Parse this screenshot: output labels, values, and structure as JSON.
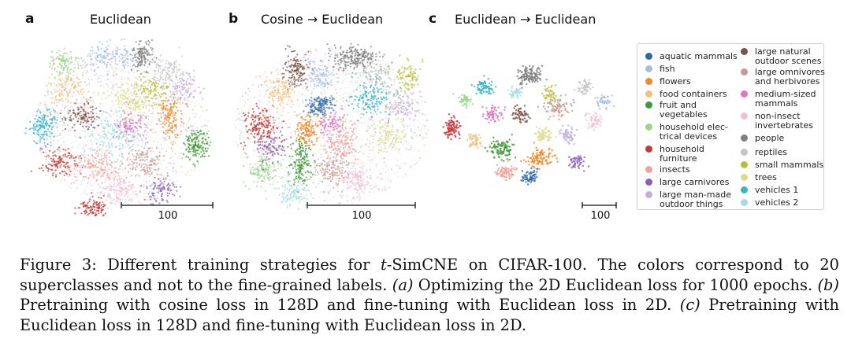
{
  "panels": [
    {
      "letter": "a",
      "title": "Euclidean",
      "scale_label": "100"
    },
    {
      "letter": "b",
      "title": "Cosine → Euclidean",
      "scale_label": "100"
    },
    {
      "letter": "c",
      "title": "Euclidean → Euclidean",
      "scale_label": "100"
    }
  ],
  "legend": [
    {
      "label": "aquatic mammals",
      "color": "#2e6aa8"
    },
    {
      "label": "fish",
      "color": "#a7bde0"
    },
    {
      "label": "flowers",
      "color": "#f08a2a"
    },
    {
      "label": "food containers",
      "color": "#f4bf7a"
    },
    {
      "label": "fruit and\nvegetables",
      "color": "#3e9a3a"
    },
    {
      "label": "household elec-\ntrical devices",
      "color": "#98d68a"
    },
    {
      "label": "household\nfurniture",
      "color": "#c63a36"
    },
    {
      "label": "insects",
      "color": "#f0a39e"
    },
    {
      "label": "large carnivores",
      "color": "#8a62b4"
    },
    {
      "label": "large man-made\noutdoor things",
      "color": "#c0b0d6"
    },
    {
      "label": "large natural\noutdoor scenes",
      "color": "#7d5349"
    },
    {
      "label": "large omnivores\nand herbivores",
      "color": "#c79b93"
    },
    {
      "label": "medium-sized\nmammals",
      "color": "#dc78c0"
    },
    {
      "label": "non-insect\ninvertebrates",
      "color": "#f2bfd6"
    },
    {
      "label": "people",
      "color": "#7f7f7f"
    },
    {
      "label": "reptiles",
      "color": "#c5c5c5"
    },
    {
      "label": "small mammals",
      "color": "#bdbd3a"
    },
    {
      "label": "trees",
      "color": "#dcdc8c"
    },
    {
      "label": "vehicles 1",
      "color": "#37b4c8"
    },
    {
      "label": "vehicles 2",
      "color": "#a6dbe6"
    }
  ],
  "caption": {
    "prefix": "Figure 3: Different training strategies for ",
    "t": "t",
    "after_t": "-SimCNE on CIFAR-100. The colors correspond to 20 superclasses and not to the fine-grained labels. ",
    "a_tag": "(a)",
    "a_text": " Optimizing the 2D Euclidean loss for 1000 epochs. ",
    "b_tag": "(b)",
    "b_text": " Pretraining with cosine loss in 128D and fine-tuning with Euclidean loss in 2D. ",
    "c_tag": "(c)",
    "c_text": " Pretraining with Euclidean loss in 128D and fine-tuning with Euclidean loss in 2D."
  }
}
